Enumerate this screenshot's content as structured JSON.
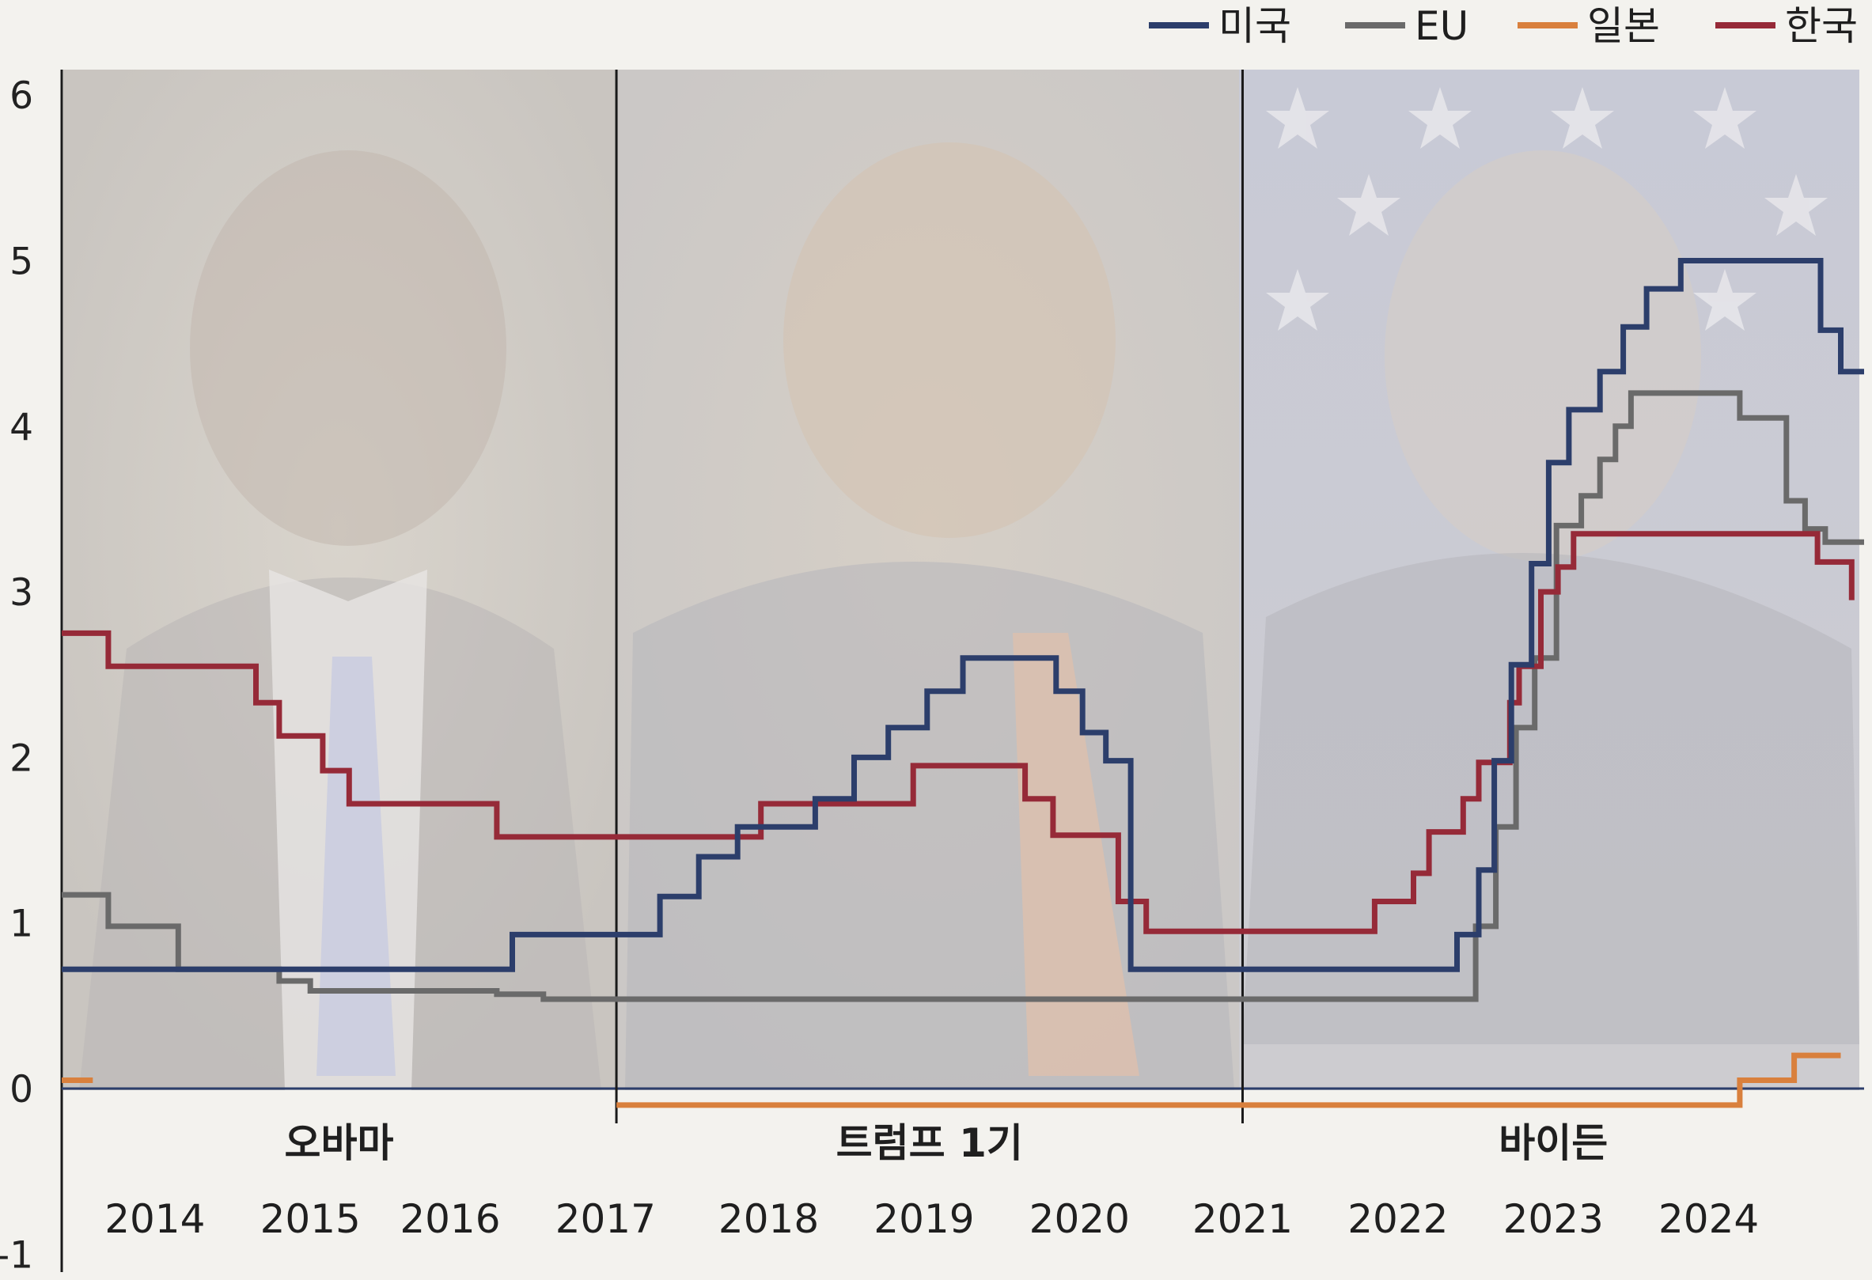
{
  "chart_data": {
    "type": "line",
    "step": true,
    "ylim": [
      -1,
      6
    ],
    "yticks": [
      6,
      5,
      4,
      3,
      2,
      1,
      0,
      -1
    ],
    "xlim": [
      2013.4,
      2025.0
    ],
    "x_tick_labels": [
      {
        "label": "2014",
        "x": 2014.0
      },
      {
        "label": "2015",
        "x": 2015.0
      },
      {
        "label": "2016",
        "x": 2015.9
      },
      {
        "label": "2017",
        "x": 2016.9
      },
      {
        "label": "2018",
        "x": 2017.95
      },
      {
        "label": "2019",
        "x": 2018.95
      },
      {
        "label": "2020",
        "x": 2019.95
      },
      {
        "label": "2021",
        "x": 2021.0
      },
      {
        "label": "2022",
        "x": 2022.0
      },
      {
        "label": "2023",
        "x": 2023.0
      },
      {
        "label": "2024",
        "x": 2024.0
      }
    ],
    "eras": [
      {
        "label": "오바마",
        "start": 2013.4,
        "end": 2016.97
      },
      {
        "label": "트럼프 1기",
        "start": 2016.97,
        "end": 2021.0
      },
      {
        "label": "바이든",
        "start": 2021.0,
        "end": 2025.0
      }
    ],
    "era_boundaries": [
      2016.97,
      2021.0
    ],
    "legend": [
      "미국",
      "EU",
      "일본",
      "한국"
    ],
    "series": [
      {
        "name": "미국",
        "color": "#2c3e6b",
        "points": [
          [
            2013.4,
            0.72
          ],
          [
            2016.3,
            0.72
          ],
          [
            2016.3,
            0.93
          ],
          [
            2017.25,
            0.93
          ],
          [
            2017.25,
            1.16
          ],
          [
            2017.5,
            1.16
          ],
          [
            2017.5,
            1.4
          ],
          [
            2017.75,
            1.4
          ],
          [
            2017.75,
            1.58
          ],
          [
            2018.25,
            1.58
          ],
          [
            2018.25,
            1.75
          ],
          [
            2018.5,
            1.75
          ],
          [
            2018.5,
            2.0
          ],
          [
            2018.72,
            2.0
          ],
          [
            2018.72,
            2.18
          ],
          [
            2018.97,
            2.18
          ],
          [
            2018.97,
            2.4
          ],
          [
            2019.2,
            2.4
          ],
          [
            2019.2,
            2.6
          ],
          [
            2019.8,
            2.6
          ],
          [
            2019.8,
            2.4
          ],
          [
            2019.97,
            2.4
          ],
          [
            2019.97,
            2.15
          ],
          [
            2020.12,
            2.15
          ],
          [
            2020.12,
            1.98
          ],
          [
            2020.28,
            1.98
          ],
          [
            2020.28,
            0.72
          ],
          [
            2022.38,
            0.72
          ],
          [
            2022.38,
            0.93
          ],
          [
            2022.52,
            0.93
          ],
          [
            2022.52,
            1.32
          ],
          [
            2022.62,
            1.32
          ],
          [
            2022.62,
            1.98
          ],
          [
            2022.73,
            1.98
          ],
          [
            2022.73,
            2.56
          ],
          [
            2022.86,
            2.56
          ],
          [
            2022.86,
            3.17
          ],
          [
            2022.97,
            3.17
          ],
          [
            2022.97,
            3.78
          ],
          [
            2023.1,
            3.78
          ],
          [
            2023.1,
            4.1
          ],
          [
            2023.3,
            4.1
          ],
          [
            2023.3,
            4.33
          ],
          [
            2023.45,
            4.33
          ],
          [
            2023.45,
            4.6
          ],
          [
            2023.6,
            4.6
          ],
          [
            2023.6,
            4.83
          ],
          [
            2023.82,
            4.83
          ],
          [
            2023.82,
            5.0
          ],
          [
            2024.72,
            5.0
          ],
          [
            2024.72,
            4.58
          ],
          [
            2024.85,
            4.58
          ],
          [
            2024.85,
            4.33
          ],
          [
            2025.0,
            4.33
          ]
        ]
      },
      {
        "name": "EU",
        "color": "#6a6a6a",
        "points": [
          [
            2013.4,
            1.17
          ],
          [
            2013.7,
            1.17
          ],
          [
            2013.7,
            0.98
          ],
          [
            2014.15,
            0.98
          ],
          [
            2014.15,
            0.72
          ],
          [
            2014.8,
            0.72
          ],
          [
            2014.8,
            0.65
          ],
          [
            2015.0,
            0.65
          ],
          [
            2015.0,
            0.59
          ],
          [
            2016.2,
            0.59
          ],
          [
            2016.2,
            0.57
          ],
          [
            2016.5,
            0.57
          ],
          [
            2016.5,
            0.54
          ],
          [
            2022.5,
            0.54
          ],
          [
            2022.5,
            0.98
          ],
          [
            2022.63,
            0.98
          ],
          [
            2022.63,
            1.58
          ],
          [
            2022.76,
            1.58
          ],
          [
            2022.76,
            2.18
          ],
          [
            2022.88,
            2.18
          ],
          [
            2022.88,
            2.6
          ],
          [
            2023.02,
            2.6
          ],
          [
            2023.02,
            3.4
          ],
          [
            2023.18,
            3.4
          ],
          [
            2023.18,
            3.58
          ],
          [
            2023.3,
            3.58
          ],
          [
            2023.3,
            3.8
          ],
          [
            2023.4,
            3.8
          ],
          [
            2023.4,
            4.0
          ],
          [
            2023.5,
            4.0
          ],
          [
            2023.5,
            4.2
          ],
          [
            2024.2,
            4.2
          ],
          [
            2024.2,
            4.05
          ],
          [
            2024.5,
            4.05
          ],
          [
            2024.5,
            3.55
          ],
          [
            2024.62,
            3.55
          ],
          [
            2024.62,
            3.38
          ],
          [
            2024.75,
            3.38
          ],
          [
            2024.75,
            3.3
          ],
          [
            2025.0,
            3.3
          ]
        ]
      },
      {
        "name": "일본",
        "color": "#d9803d",
        "points_segments": [
          [
            [
              2013.4,
              0.05
            ],
            [
              2013.6,
              0.05
            ]
          ],
          [
            [
              2016.97,
              -0.1
            ],
            [
              2024.2,
              -0.1
            ],
            [
              2024.2,
              0.05
            ],
            [
              2024.55,
              0.05
            ],
            [
              2024.55,
              0.2
            ],
            [
              2024.85,
              0.2
            ]
          ]
        ]
      },
      {
        "name": "한국",
        "color": "#962a38",
        "points": [
          [
            2013.4,
            2.75
          ],
          [
            2013.7,
            2.75
          ],
          [
            2013.7,
            2.55
          ],
          [
            2014.65,
            2.55
          ],
          [
            2014.65,
            2.33
          ],
          [
            2014.8,
            2.33
          ],
          [
            2014.8,
            2.13
          ],
          [
            2015.08,
            2.13
          ],
          [
            2015.08,
            1.92
          ],
          [
            2015.25,
            1.92
          ],
          [
            2015.25,
            1.72
          ],
          [
            2016.2,
            1.72
          ],
          [
            2016.2,
            1.52
          ],
          [
            2017.9,
            1.52
          ],
          [
            2017.9,
            1.72
          ],
          [
            2018.88,
            1.72
          ],
          [
            2018.88,
            1.95
          ],
          [
            2019.6,
            1.95
          ],
          [
            2019.6,
            1.75
          ],
          [
            2019.78,
            1.75
          ],
          [
            2019.78,
            1.53
          ],
          [
            2020.2,
            1.53
          ],
          [
            2020.2,
            1.13
          ],
          [
            2020.38,
            1.13
          ],
          [
            2020.38,
            0.95
          ],
          [
            2021.85,
            0.95
          ],
          [
            2021.85,
            1.13
          ],
          [
            2022.1,
            1.13
          ],
          [
            2022.1,
            1.3
          ],
          [
            2022.2,
            1.3
          ],
          [
            2022.2,
            1.55
          ],
          [
            2022.42,
            1.55
          ],
          [
            2022.42,
            1.75
          ],
          [
            2022.52,
            1.75
          ],
          [
            2022.52,
            1.97
          ],
          [
            2022.72,
            1.97
          ],
          [
            2022.72,
            2.33
          ],
          [
            2022.78,
            2.33
          ],
          [
            2022.78,
            2.55
          ],
          [
            2022.92,
            2.55
          ],
          [
            2022.92,
            3.0
          ],
          [
            2023.03,
            3.0
          ],
          [
            2023.03,
            3.15
          ],
          [
            2023.13,
            3.15
          ],
          [
            2023.13,
            3.35
          ],
          [
            2024.7,
            3.35
          ],
          [
            2024.7,
            3.18
          ],
          [
            2024.92,
            3.18
          ],
          [
            2024.92,
            2.95
          ]
        ]
      }
    ]
  }
}
